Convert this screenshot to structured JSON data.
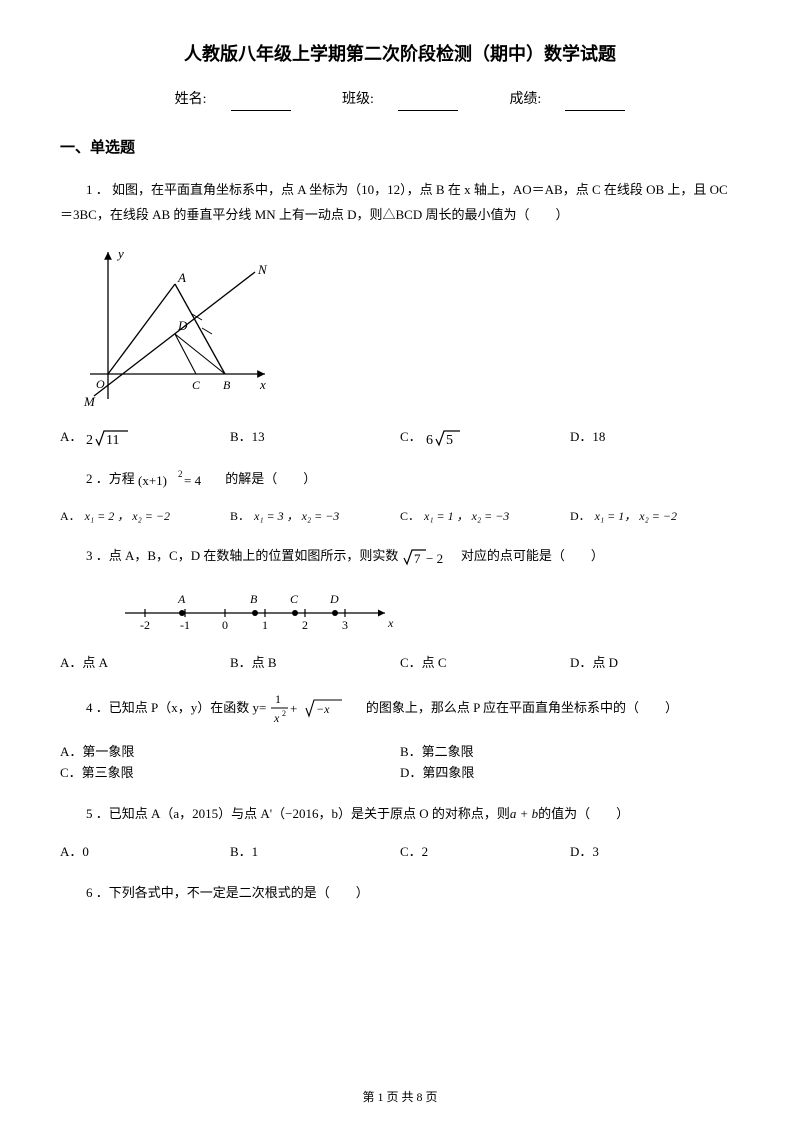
{
  "title": "人教版八年级上学期第二次阶段检测（期中）数学试题",
  "info": {
    "name_label": "姓名:",
    "class_label": "班级:",
    "score_label": "成绩:"
  },
  "section1_header": "一、单选题",
  "q1": {
    "num": "1 ．",
    "text": " 如图，在平面直角坐标系中，点 A 坐标为（10，12），点 B 在 x 轴上，AO＝AB，点 C 在线段 OB 上，且 OC＝3BC，在线段 AB 的垂直平分线 MN 上有一动点 D，则△BCD 周长的最小值为（　　）",
    "optA_pre": "A．",
    "optA_num": "2",
    "optA_rad": "11",
    "optB": "B．13",
    "optC_pre": "C．",
    "optC_num": "6",
    "optC_rad": "5",
    "optD": "D．18"
  },
  "q2": {
    "num": "2 ．方程",
    "eq_base": "(x+1)",
    "eq_exp": "2",
    "eq_rhs": " = 4",
    "tail": "的解是（　　）",
    "optA_pre": "A．",
    "optA": "x₁ = 2 ， x₂ = −2",
    "optB_pre": "B．",
    "optB": "x₁ = 3 ， x₂ = −3",
    "optC_pre": "C．",
    "optC": "x₁ = 1 ， x₂ = −3",
    "optD_pre": "D．",
    "optD": "x₁ = 1， x₂ = −2"
  },
  "q3": {
    "num": "3 ．点 A，B，C，D 在数轴上的位置如图所示，则实数",
    "sqrt": "7",
    "minus": " − 2",
    "tail": "对应的点可能是（　　）",
    "optA": "A．点 A",
    "optB": "B．点 B",
    "optC": "C．点 C",
    "optD": "D．点 D",
    "ticks": [
      "-2",
      "-1",
      "0",
      "1",
      "2",
      "3"
    ],
    "labels": [
      "A",
      "B",
      "C",
      "D"
    ]
  },
  "q4": {
    "num": "4 ．已知点 P（x，y）在函数 y=",
    "frac_top": "1",
    "frac_bot_base": "x",
    "frac_bot_exp": "2",
    "plus": " + ",
    "sqrt_arg": "−x",
    "tail": "　的图象上，那么点 P 应在平面直角坐标系中的（　　）",
    "optA": "A．第一象限",
    "optB": "B．第二象限",
    "optC": "C．第三象限",
    "optD": "D．第四象限"
  },
  "q5": {
    "num": "5 ．已知点 A（a，2015）与点 A'（−2016，b）是关于原点 O 的对称点，则",
    "expr": "a + b",
    "tail": "的值为（　　）",
    "optA": "A．0",
    "optB": "B．1",
    "optC": "C．2",
    "optD": "D．3"
  },
  "q6": {
    "num": "6 ．下列各式中，不一定是二次根式的是（　　）"
  },
  "footer": "第 1 页 共 8 页"
}
